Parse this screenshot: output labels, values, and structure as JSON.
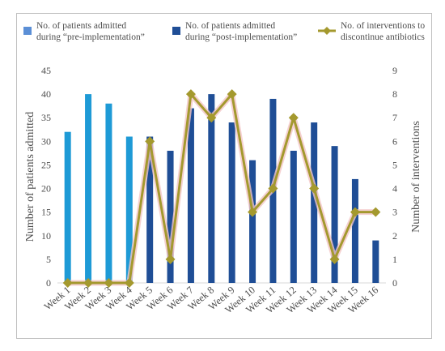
{
  "chart_data": {
    "type": "bar",
    "categories": [
      "Week 1",
      "Week 2",
      "Week 3",
      "Week 4",
      "Week 5",
      "Week 6",
      "Week 7",
      "Week 8",
      "Week 9",
      "Week 10",
      "Week 11",
      "Week 12",
      "Week 13",
      "Week 14",
      "Week 15",
      "Week 16"
    ],
    "series": [
      {
        "name": "No. of patients admitted during “pre-implementation”",
        "kind": "bar",
        "axis": "left",
        "color": "#1e9ad6",
        "values": [
          32,
          40,
          38,
          31,
          null,
          null,
          null,
          null,
          null,
          null,
          null,
          null,
          null,
          null,
          null,
          null
        ]
      },
      {
        "name": "No. of patients admitted during “post-implementation”",
        "kind": "bar",
        "axis": "left",
        "color": "#1f4e96",
        "values": [
          null,
          null,
          null,
          null,
          31,
          28,
          37,
          40,
          34,
          26,
          39,
          28,
          34,
          29,
          22,
          9
        ]
      },
      {
        "name": "No. of interventions to discontinue antibiotics",
        "kind": "line",
        "axis": "right",
        "color": "#a4992e",
        "marker_color": "#a4992e",
        "glow_color": "#f2c6c6",
        "values": [
          0,
          0,
          0,
          0,
          6,
          1,
          8,
          7,
          8,
          3,
          4,
          7,
          4,
          1,
          3,
          3
        ]
      }
    ],
    "y_left": {
      "label": "Number of patients admitted",
      "ticks": [
        0,
        5,
        10,
        15,
        20,
        25,
        30,
        35,
        40,
        45
      ],
      "range": [
        0,
        45
      ]
    },
    "y_right": {
      "label": "Number of interventions",
      "ticks": [
        0,
        1,
        2,
        3,
        4,
        5,
        6,
        7,
        8,
        9
      ],
      "range": [
        0,
        9
      ]
    },
    "legend": {
      "placement": "top",
      "items": [
        {
          "lines": [
            "No. of patients admitted",
            "during “pre-implementation”"
          ],
          "swatch": "square",
          "color": "#5b8fd6"
        },
        {
          "lines": [
            "No. of patients admitted",
            "during “post-implementation”"
          ],
          "swatch": "square",
          "color": "#1f4e96"
        },
        {
          "lines": [
            "No. of interventions to",
            "discontinue antibiotics"
          ],
          "swatch": "line",
          "color": "#a4992e"
        }
      ]
    },
    "grid": false,
    "title": ""
  }
}
